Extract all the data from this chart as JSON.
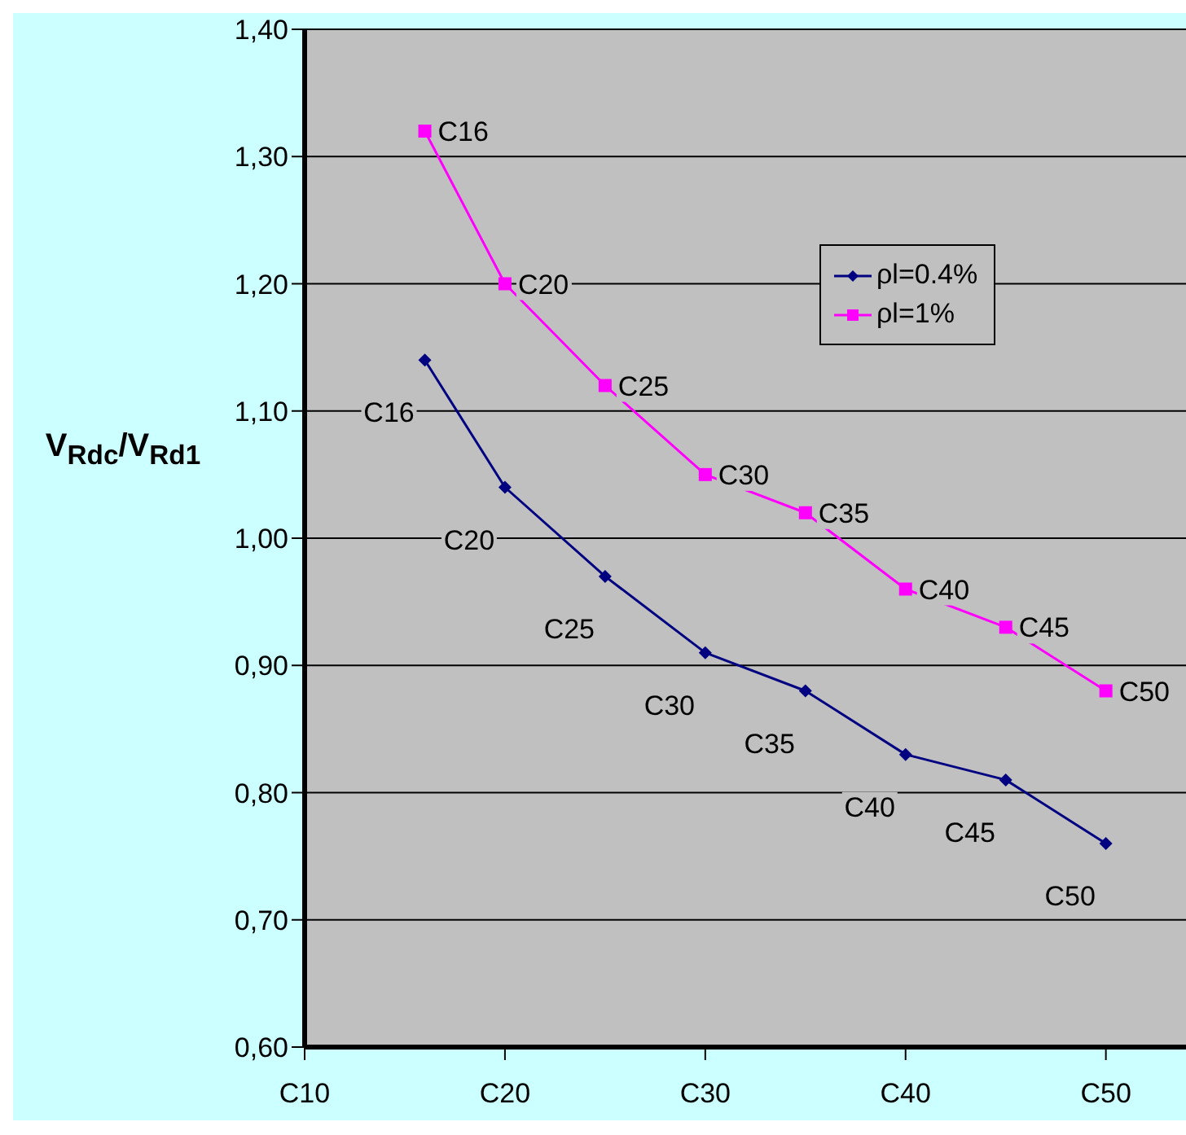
{
  "chart_data": {
    "type": "line",
    "ylabel": "V$_{Rdc}$/V$_{Rd1}$",
    "categories": [
      "C10",
      null,
      null,
      null,
      null,
      null,
      null,
      null,
      null,
      null,
      "C20",
      null,
      null,
      null,
      null,
      null,
      null,
      null,
      null,
      null,
      "C30",
      null,
      null,
      null,
      null,
      null,
      null,
      null,
      null,
      null,
      "C40",
      null,
      null,
      null,
      null,
      null,
      null,
      null,
      null,
      null,
      "C50",
      null,
      null,
      null,
      null
    ],
    "series": [
      {
        "name": "ρl=0.4%",
        "color": "#000080",
        "marker": "diamond",
        "values": [
          null,
          null,
          null,
          null,
          null,
          null,
          1.14,
          null,
          null,
          null,
          1.04,
          null,
          null,
          null,
          null,
          0.97,
          null,
          null,
          null,
          null,
          0.91,
          null,
          null,
          null,
          null,
          0.88,
          null,
          null,
          null,
          null,
          0.83,
          null,
          null,
          null,
          null,
          0.81,
          null,
          null,
          null,
          null,
          0.76,
          null,
          null,
          null,
          null
        ],
        "value_labels": [
          null,
          null,
          null,
          null,
          null,
          null,
          "C16",
          null,
          null,
          null,
          "C20",
          null,
          null,
          null,
          null,
          "C25",
          null,
          null,
          null,
          null,
          "C30",
          null,
          null,
          null,
          null,
          "C35",
          null,
          null,
          null,
          null,
          "C40",
          null,
          null,
          null,
          null,
          "C45",
          null,
          null,
          null,
          null,
          "C50",
          null,
          null,
          null,
          null
        ]
      },
      {
        "name": "ρl=1%",
        "color": "#ff00ff",
        "marker": "square",
        "values": [
          null,
          null,
          null,
          null,
          null,
          null,
          1.32,
          null,
          null,
          null,
          1.2,
          null,
          null,
          null,
          null,
          1.12,
          null,
          null,
          null,
          null,
          1.05,
          null,
          null,
          null,
          null,
          1.02,
          null,
          null,
          null,
          null,
          0.96,
          null,
          null,
          null,
          null,
          0.93,
          null,
          null,
          null,
          null,
          0.88,
          null,
          null,
          null,
          null
        ],
        "value_labels": [
          null,
          null,
          null,
          null,
          null,
          null,
          "C16",
          null,
          null,
          null,
          "C20",
          null,
          null,
          null,
          null,
          "C25",
          null,
          null,
          null,
          null,
          "C30",
          null,
          null,
          null,
          null,
          "C35",
          null,
          null,
          null,
          null,
          "C40",
          null,
          null,
          null,
          null,
          "C45",
          null,
          null,
          null,
          null,
          "C50",
          null,
          null,
          null,
          null
        ]
      }
    ],
    "ylim": [
      0.6,
      1.4
    ],
    "yticks": [
      {
        "value": 0.6,
        "label": "0,60"
      },
      {
        "value": 0.7,
        "label": "0,70"
      },
      {
        "value": 0.8,
        "label": "0,80"
      },
      {
        "value": 0.9,
        "label": "0,90"
      },
      {
        "value": 1.0,
        "label": "1,00"
      },
      {
        "value": 1.1,
        "label": "1,10"
      },
      {
        "value": 1.2,
        "label": "1,20"
      },
      {
        "value": 1.3,
        "label": "1,30"
      },
      {
        "value": 1.4,
        "label": "1,40"
      }
    ],
    "grid": "y",
    "legend": "right"
  }
}
